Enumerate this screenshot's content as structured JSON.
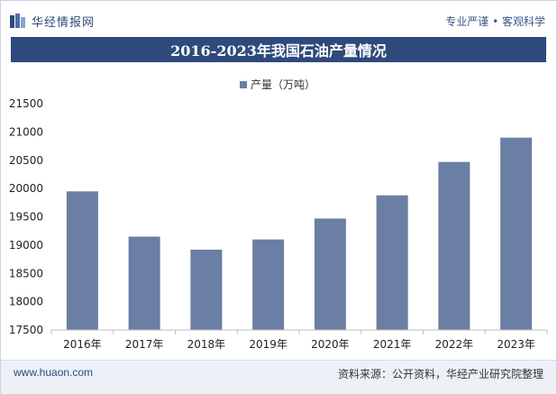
{
  "header": {
    "logo_text": "华经情报网",
    "slogan": "专业严谨 • 客观科学"
  },
  "title": "2016-2023年我国石油产量情况",
  "footer": {
    "url": "www.huaon.com",
    "source": "资料来源：公开资料，华经产业研究院整理"
  },
  "colors": {
    "bar": "#6b7ea3",
    "title_bg": "#2e4a7d"
  },
  "chart_data": {
    "type": "bar",
    "categories": [
      "2016年",
      "2017年",
      "2018年",
      "2019年",
      "2020年",
      "2021年",
      "2022年",
      "2023年"
    ],
    "series": [
      {
        "name": "产量（万吨）",
        "values": [
          19950,
          19150,
          18920,
          19100,
          19470,
          19880,
          20470,
          20900
        ]
      }
    ],
    "ylim": [
      17500,
      21500
    ],
    "yticks": [
      17500,
      18000,
      18500,
      19000,
      19500,
      20000,
      20500,
      21000,
      21500
    ],
    "legend_position": "top-center",
    "grid": false
  }
}
